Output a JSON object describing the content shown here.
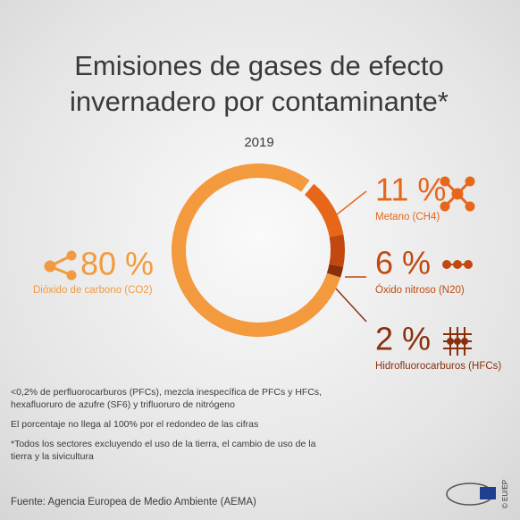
{
  "chart_data": {
    "type": "donut",
    "title": [
      "Emisiones de gases de efecto",
      "invernadero por contaminante*"
    ],
    "subtitle": "2019",
    "categories": [
      "Dióxido de carbono (CO2)",
      "Metano (CH4)",
      "Óxido nitroso (N20)",
      "Hidrofluorocarburos (HFCs)"
    ],
    "values": [
      80,
      11,
      6,
      2
    ],
    "value_labels": [
      "80 %",
      "11 %",
      "6 %",
      "2 %"
    ],
    "colors": [
      "#f39a3e",
      "#e8661a",
      "#c2480f",
      "#8a2f0c"
    ]
  },
  "notes": [
    "<0,2%  de perfluorocarburos (PFCs), mezcla inespecífica de PFCs y HFCs, hexafluoruro de azufre (SF6) y trifluoruro de nitrógeno",
    "El porcentaje no llega al 100% por el redondeo de las cifras",
    "*Todos los sectores excluyendo el uso de la tierra, el cambio de uso de la tierra y la sivicultura"
  ],
  "source": "Fuente: Agencia Europea de Medio Ambiente (AEMA)",
  "credit": "© EU/EP"
}
